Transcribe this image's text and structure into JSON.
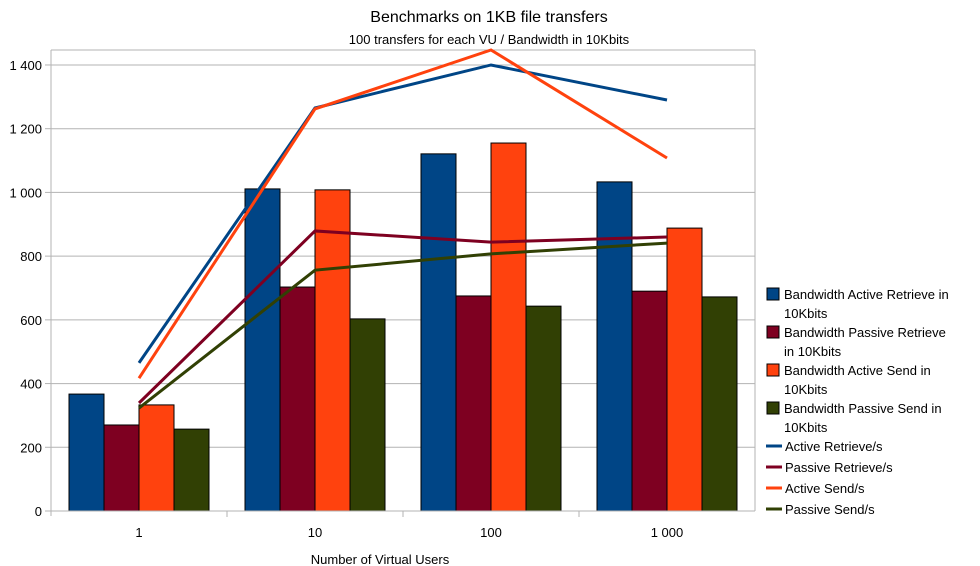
{
  "chart_data": {
    "type": "bar",
    "title": "Benchmarks on 1KB file transfers",
    "subtitle": "100 transfers for each VU / Bandwidth in 10Kbits",
    "xlabel": "Number of Virtual Users",
    "ylabel": "",
    "categories": [
      "1",
      "10",
      "100",
      "1 000"
    ],
    "ylim": [
      0,
      1447
    ],
    "yticks": [
      0,
      200,
      400,
      600,
      800,
      1000,
      1200,
      1400
    ],
    "ytick_labels": [
      "0",
      "200",
      "400",
      "600",
      "800",
      "1 000",
      "1 200",
      "1 400"
    ],
    "grid": true,
    "legend_position": "right",
    "series": [
      {
        "name": "Bandwidth Active Retrieve in 10Kbits",
        "legend_lines": [
          "Bandwidth Active Retrieve in",
          "10Kbits"
        ],
        "kind": "bar",
        "color": "#004586",
        "values": [
          367,
          1011,
          1121,
          1033
        ]
      },
      {
        "name": "Bandwidth Passive Retrieve in 10Kbits",
        "legend_lines": [
          "Bandwidth Passive Retrieve",
          "in 10Kbits"
        ],
        "kind": "bar",
        "color": "#7e0021",
        "values": [
          270,
          703,
          675,
          690
        ]
      },
      {
        "name": "Bandwidth Active Send in 10Kbits",
        "legend_lines": [
          "Bandwidth Active Send in",
          "10Kbits"
        ],
        "kind": "bar",
        "color": "#ff420e",
        "values": [
          333,
          1008,
          1155,
          888
        ]
      },
      {
        "name": "Bandwidth Passive Send in 10Kbits",
        "legend_lines": [
          "Bandwidth Passive Send in",
          "10Kbits"
        ],
        "kind": "bar",
        "color": "#314004",
        "values": [
          257,
          603,
          643,
          672
        ]
      },
      {
        "name": "Active Retrieve/s",
        "legend_lines": [
          "Active Retrieve/s"
        ],
        "kind": "line",
        "color": "#004586",
        "values": [
          465,
          1265,
          1400,
          1290
        ]
      },
      {
        "name": "Passive Retrieve/s",
        "legend_lines": [
          "Passive Retrieve/s"
        ],
        "kind": "line",
        "color": "#7e0021",
        "values": [
          339,
          879,
          844,
          860
        ]
      },
      {
        "name": "Active Send/s",
        "legend_lines": [
          "Active Send/s"
        ],
        "kind": "line",
        "color": "#ff420e",
        "values": [
          417,
          1262,
          1447,
          1108
        ]
      },
      {
        "name": "Passive Send/s",
        "legend_lines": [
          "Passive Send/s"
        ],
        "kind": "line",
        "color": "#314004",
        "values": [
          323,
          756,
          807,
          841
        ]
      }
    ]
  }
}
